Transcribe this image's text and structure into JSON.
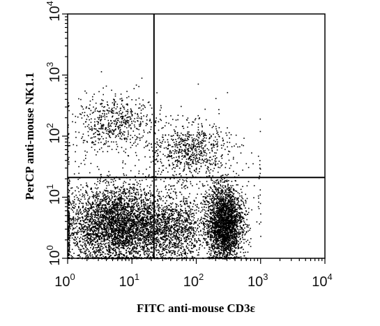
{
  "chart_data": {
    "type": "scatter",
    "xlabel": "FITC anti-mouse CD3ε",
    "ylabel": "PerCP anti-mouse NK1.1",
    "xscale": "log",
    "yscale": "log",
    "xlim": [
      1,
      10000
    ],
    "ylim": [
      1,
      10000
    ],
    "x_ticks": [
      {
        "base": "10",
        "exp": "0",
        "value": 1
      },
      {
        "base": "10",
        "exp": "1",
        "value": 10
      },
      {
        "base": "10",
        "exp": "2",
        "value": 100
      },
      {
        "base": "10",
        "exp": "3",
        "value": 1000
      },
      {
        "base": "10",
        "exp": "4",
        "value": 10000
      }
    ],
    "y_ticks": [
      {
        "base": "10",
        "exp": "0",
        "value": 1
      },
      {
        "base": "10",
        "exp": "1",
        "value": 10
      },
      {
        "base": "10",
        "exp": "2",
        "value": 100
      },
      {
        "base": "10",
        "exp": "3",
        "value": 1000
      },
      {
        "base": "10",
        "exp": "4",
        "value": 10000
      }
    ],
    "quadrant_gates": {
      "x": 22,
      "y": 21
    },
    "point_color": "#000000",
    "populations": [
      {
        "center_x": 6,
        "center_y": 3.5,
        "spread_log_x": 0.42,
        "spread_log_y": 0.32,
        "relative_density": 0.43
      },
      {
        "center_x": 270,
        "center_y": 3.8,
        "spread_log_x": 0.14,
        "spread_log_y": 0.3,
        "relative_density": 0.3
      },
      {
        "center_x": 45,
        "center_y": 3,
        "spread_log_x": 0.25,
        "spread_log_y": 0.3,
        "relative_density": 0.1
      },
      {
        "center_x": 5,
        "center_y": 170,
        "spread_log_x": 0.32,
        "spread_log_y": 0.22,
        "relative_density": 0.06
      },
      {
        "center_x": 80,
        "center_y": 60,
        "spread_log_x": 0.3,
        "spread_log_y": 0.22,
        "relative_density": 0.07
      },
      {
        "center_x": 40,
        "center_y": 15,
        "spread_log_x": 0.9,
        "spread_log_y": 0.6,
        "relative_density": 0.04
      }
    ]
  }
}
